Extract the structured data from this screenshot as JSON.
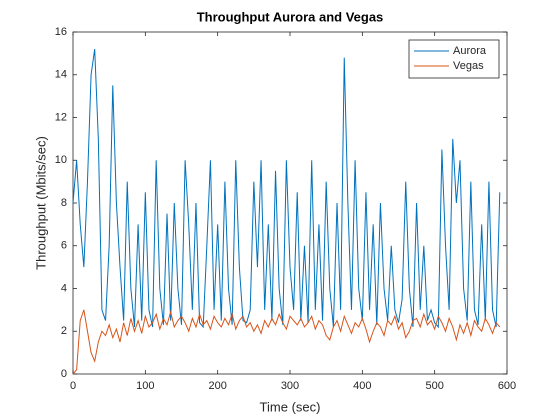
{
  "chart_data": {
    "type": "line",
    "title": "Throughput Aurora and Vegas",
    "xlabel": "Time (sec)",
    "ylabel": "Throughput (Mbits/sec)",
    "x": [
      0,
      5,
      10,
      15,
      20,
      25,
      30,
      35,
      40,
      45,
      50,
      55,
      60,
      65,
      70,
      75,
      80,
      85,
      90,
      95,
      100,
      105,
      110,
      115,
      120,
      125,
      130,
      135,
      140,
      145,
      150,
      155,
      160,
      165,
      170,
      175,
      180,
      185,
      190,
      195,
      200,
      205,
      210,
      215,
      220,
      225,
      230,
      235,
      240,
      245,
      250,
      255,
      260,
      265,
      270,
      275,
      280,
      285,
      290,
      295,
      300,
      305,
      310,
      315,
      320,
      325,
      330,
      335,
      340,
      345,
      350,
      355,
      360,
      365,
      370,
      375,
      380,
      385,
      390,
      395,
      400,
      405,
      410,
      415,
      420,
      425,
      430,
      435,
      440,
      445,
      450,
      455,
      460,
      465,
      470,
      475,
      480,
      485,
      490,
      495,
      500,
      505,
      510,
      515,
      520,
      525,
      530,
      535,
      540,
      545,
      550,
      555,
      560,
      565,
      570,
      575,
      580,
      585,
      590
    ],
    "series": [
      {
        "name": "Aurora",
        "color": "#0072bd",
        "values": [
          8,
          10,
          7,
          5,
          9,
          14,
          15.2,
          11,
          3,
          2.5,
          6,
          13.5,
          8,
          5,
          2.5,
          9,
          4,
          2.2,
          7,
          2.5,
          8.5,
          3,
          2.2,
          10,
          4,
          2.3,
          7.5,
          2.5,
          8,
          4,
          2.3,
          10,
          7,
          3,
          8,
          2.4,
          2.2,
          6,
          10,
          3,
          7,
          2.5,
          9,
          4,
          2.3,
          10,
          5,
          2.5,
          2.4,
          3,
          9,
          5,
          10,
          3,
          7,
          2.5,
          9.5,
          4,
          2.3,
          10,
          5,
          3,
          8.5,
          2.5,
          6,
          2.4,
          10,
          3,
          7,
          2.5,
          9,
          4,
          2.2,
          8,
          3,
          14.8,
          8,
          3,
          10,
          4,
          2.5,
          8.5,
          3,
          7,
          2.3,
          8,
          4,
          2.5,
          6,
          3,
          2.4,
          3.5,
          9,
          4,
          2.2,
          8,
          3,
          6,
          2.5,
          3,
          2.4,
          2.2,
          10.5,
          6,
          3,
          11,
          8,
          10,
          4,
          2.5,
          9,
          3,
          2.3,
          7,
          2.5,
          9,
          3,
          2.2,
          8.5
        ]
      },
      {
        "name": "Vegas",
        "color": "#d95319",
        "values": [
          0,
          0.2,
          2.5,
          3,
          2,
          1,
          0.6,
          1.5,
          2,
          1.8,
          2.3,
          1.7,
          2.1,
          1.5,
          2.4,
          1.8,
          2.6,
          2,
          2.5,
          1.9,
          2.7,
          2.2,
          2.4,
          2.8,
          2.1,
          2.6,
          2.3,
          2.9,
          2.2,
          2.5,
          2.7,
          2.4,
          2,
          2.6,
          2.2,
          2.8,
          2.3,
          2.5,
          2.1,
          2.7,
          2.4,
          2.2,
          2.6,
          2.3,
          2.8,
          2.1,
          2.5,
          2.7,
          2.2,
          2.4,
          2,
          2.3,
          1.9,
          2.5,
          2.2,
          2.6,
          2.3,
          2.8,
          2.4,
          2.1,
          2.7,
          2.5,
          2.3,
          2.6,
          2.2,
          2.4,
          2.7,
          2.1,
          2.5,
          2.3,
          1.8,
          1.6,
          2.2,
          2.5,
          2,
          2.7,
          2.3,
          1.9,
          2.4,
          2.2,
          2.6,
          2.1,
          1.5,
          2,
          2.4,
          2.2,
          1.8,
          2.5,
          2.3,
          2.7,
          2.1,
          2.4,
          1.7,
          2,
          2.5,
          2.6,
          2.2,
          2.8,
          2.3,
          2.5,
          2.1,
          2.7,
          2.4,
          2,
          2.6,
          2.2,
          1.6,
          2.3,
          1.9,
          2.4,
          1.8,
          2.5,
          2.2,
          2,
          2.6,
          2.3,
          1.9,
          2.4,
          2.2
        ]
      }
    ],
    "xlim": [
      0,
      600
    ],
    "xticks": [
      0,
      100,
      200,
      300,
      400,
      500,
      600
    ],
    "ylim": [
      0,
      16
    ],
    "yticks": [
      0,
      2,
      4,
      6,
      8,
      10,
      12,
      14,
      16
    ],
    "legend": "northeast"
  }
}
